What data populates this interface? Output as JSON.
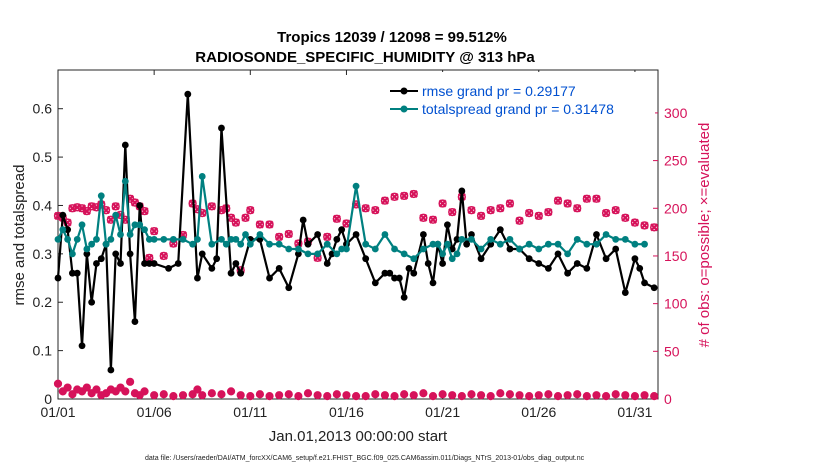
{
  "chart_data": {
    "type": "line",
    "title": "Tropics 12039 / 12098 = 99.512%",
    "subtitle": "RADIOSONDE_SPECIFIC_HUMIDITY @ 313 hPa",
    "xlabel": "Jan.01,2013 00:00:00 start",
    "ylabel_left": "rmse and totalspread",
    "ylabel_right": "# of obs: o=possible; ×=evaluated",
    "footer": "data file: /Users/raeder/DAI/ATM_forcXX/CAM6_setup/f.e21.FHIST_BGC.f09_025.CAM6assim.011/Diags_NTrS_2013-01/obs_diag_output.nc",
    "xlim": [
      1,
      32.2
    ],
    "ylim_left": [
      0,
      0.68
    ],
    "ylim_right": [
      0,
      345
    ],
    "x_ticks": [
      1,
      6,
      11,
      16,
      21,
      26,
      31
    ],
    "x_tick_labels": [
      "01/01",
      "01/06",
      "01/11",
      "01/16",
      "01/21",
      "01/26",
      "01/31"
    ],
    "y_ticks_left": [
      0,
      0.1,
      0.2,
      0.3,
      0.4,
      0.5,
      0.6
    ],
    "y_tick_labels_left": [
      "0",
      "0.1",
      "0.2",
      "0.3",
      "0.4",
      "0.5",
      "0.6"
    ],
    "y_ticks_right": [
      0,
      50,
      100,
      150,
      200,
      250,
      300
    ],
    "y_tick_labels_right": [
      "0",
      "50",
      "100",
      "150",
      "200",
      "250",
      "300"
    ],
    "legend_position": "top-right",
    "colors": {
      "rmse": "#000000",
      "spread": "#008080",
      "obs": "#d6125a",
      "legend_text": "#0050d0"
    },
    "series": [
      {
        "name": "rmse grand pr = 0.29177",
        "color": "#000000",
        "axis": "left",
        "x": [
          1.0,
          1.25,
          1.5,
          1.75,
          2.0,
          2.25,
          2.5,
          2.75,
          3.0,
          3.25,
          3.5,
          3.75,
          4.0,
          4.25,
          4.5,
          4.75,
          5.0,
          5.25,
          5.5,
          5.75,
          6.0,
          6.75,
          7.25,
          7.75,
          8.25,
          8.5,
          9.0,
          9.25,
          9.5,
          10.0,
          10.25,
          10.5,
          11.0,
          11.5,
          12.0,
          12.5,
          13.0,
          13.5,
          13.75,
          14.0,
          14.5,
          15.0,
          15.25,
          15.5,
          15.75,
          16.0,
          16.5,
          17.0,
          17.5,
          18.0,
          18.25,
          18.5,
          18.75,
          19.0,
          19.25,
          19.5,
          20.0,
          20.25,
          20.5,
          20.75,
          21.0,
          21.25,
          21.5,
          21.75,
          22.0,
          22.25,
          22.5,
          23.0,
          23.5,
          24.0,
          24.5,
          25.0,
          25.5,
          26.0,
          26.5,
          27.0,
          27.5,
          28.0,
          28.5,
          29.0,
          29.5,
          30.0,
          30.5,
          31.0,
          31.25,
          31.5,
          32.0
        ],
        "values": [
          0.25,
          0.38,
          0.35,
          0.26,
          0.26,
          0.11,
          0.3,
          0.2,
          0.28,
          0.29,
          0.32,
          0.06,
          0.3,
          0.28,
          0.525,
          0.3,
          0.16,
          0.4,
          0.28,
          0.28,
          0.28,
          0.27,
          0.28,
          0.63,
          0.25,
          0.3,
          0.27,
          0.29,
          0.56,
          0.26,
          0.28,
          0.26,
          0.33,
          0.33,
          0.25,
          0.27,
          0.23,
          0.3,
          0.37,
          0.32,
          0.34,
          0.28,
          0.3,
          0.33,
          0.35,
          0.32,
          0.34,
          0.29,
          0.24,
          0.26,
          0.26,
          0.25,
          0.25,
          0.21,
          0.27,
          0.26,
          0.34,
          0.28,
          0.24,
          0.32,
          0.28,
          0.36,
          0.31,
          0.33,
          0.43,
          0.32,
          0.34,
          0.29,
          0.32,
          0.35,
          0.31,
          0.31,
          0.29,
          0.28,
          0.27,
          0.3,
          0.26,
          0.28,
          0.27,
          0.34,
          0.29,
          0.31,
          0.22,
          0.29,
          0.27,
          0.24,
          0.23
        ]
      },
      {
        "name": "totalspread grand pr = 0.31478",
        "color": "#008080",
        "axis": "left",
        "x": [
          1.0,
          1.25,
          1.5,
          1.75,
          2.0,
          2.25,
          2.5,
          2.75,
          3.0,
          3.25,
          3.5,
          3.75,
          4.0,
          4.25,
          4.5,
          4.75,
          5.0,
          5.25,
          5.5,
          5.75,
          6.0,
          6.5,
          7.0,
          7.5,
          8.0,
          8.25,
          8.5,
          9.0,
          9.5,
          9.75,
          10.0,
          10.25,
          10.5,
          10.75,
          11.0,
          11.5,
          12.0,
          12.5,
          13.0,
          13.5,
          14.0,
          14.5,
          15.0,
          15.5,
          15.75,
          16.0,
          16.5,
          17.0,
          17.5,
          18.0,
          18.5,
          19.0,
          19.5,
          20.0,
          20.5,
          20.75,
          21.0,
          21.25,
          21.5,
          21.75,
          22.0,
          22.5,
          23.0,
          23.5,
          24.0,
          24.5,
          25.0,
          25.5,
          26.0,
          26.5,
          27.0,
          27.5,
          28.0,
          28.5,
          29.0,
          29.5,
          30.0,
          30.5,
          31.0,
          31.5
        ],
        "values": [
          0.33,
          0.35,
          0.33,
          0.3,
          0.33,
          0.36,
          0.31,
          0.32,
          0.33,
          0.42,
          0.32,
          0.33,
          0.38,
          0.34,
          0.45,
          0.34,
          0.36,
          0.36,
          0.35,
          0.33,
          0.33,
          0.33,
          0.33,
          0.33,
          0.32,
          0.33,
          0.46,
          0.32,
          0.33,
          0.32,
          0.33,
          0.33,
          0.32,
          0.34,
          0.32,
          0.34,
          0.32,
          0.32,
          0.31,
          0.31,
          0.3,
          0.3,
          0.32,
          0.3,
          0.31,
          0.31,
          0.44,
          0.32,
          0.31,
          0.34,
          0.31,
          0.3,
          0.29,
          0.31,
          0.32,
          0.32,
          0.3,
          0.32,
          0.29,
          0.3,
          0.33,
          0.33,
          0.31,
          0.33,
          0.32,
          0.33,
          0.31,
          0.32,
          0.31,
          0.32,
          0.32,
          0.3,
          0.33,
          0.32,
          0.32,
          0.34,
          0.33,
          0.33,
          0.32,
          0.32
        ]
      }
    ],
    "obs_possible": {
      "name": "possible",
      "axis": "right",
      "color": "#d6125a",
      "marker": "o",
      "x": [
        1.0,
        1.25,
        1.5,
        1.75,
        2.0,
        2.25,
        2.5,
        2.75,
        3.0,
        3.25,
        3.5,
        3.75,
        4.0,
        4.25,
        4.5,
        4.75,
        5.0,
        5.25,
        5.5,
        5.75,
        6.0,
        6.5,
        7.0,
        7.5,
        8.0,
        8.25,
        8.5,
        9.0,
        9.5,
        9.75,
        10.0,
        10.25,
        10.5,
        10.75,
        11.0,
        11.5,
        12.0,
        12.5,
        13.0,
        13.5,
        14.0,
        14.5,
        15.0,
        15.5,
        16.0,
        16.5,
        17.0,
        17.5,
        18.0,
        18.5,
        19.0,
        19.5,
        20.0,
        20.5,
        21.0,
        21.5,
        22.0,
        22.5,
        23.0,
        23.5,
        24.0,
        24.5,
        25.0,
        25.5,
        26.0,
        26.5,
        27.0,
        27.5,
        28.0,
        28.5,
        29.0,
        29.5,
        30.0,
        30.5,
        31.0,
        31.5,
        32.0
      ],
      "values": [
        192,
        190,
        185,
        200,
        201,
        200,
        197,
        202,
        201,
        204,
        198,
        188,
        202,
        193,
        188,
        210,
        206,
        202,
        197,
        148,
        176,
        150,
        163,
        172,
        205,
        199,
        195,
        202,
        198,
        200,
        190,
        185,
        135,
        190,
        198,
        183,
        183,
        170,
        173,
        163,
        165,
        148,
        170,
        189,
        184,
        204,
        200,
        198,
        208,
        212,
        213,
        215,
        190,
        188,
        205,
        196,
        212,
        198,
        192,
        198,
        200,
        205,
        187,
        195,
        192,
        196,
        208,
        205,
        200,
        210,
        210,
        195,
        198,
        190,
        185,
        182,
        180
      ]
    },
    "obs_evaluated": {
      "name": "evaluated",
      "axis": "right",
      "color": "#d6125a",
      "marker": "x",
      "x": [
        1.0,
        1.25,
        1.5,
        1.75,
        2.0,
        2.25,
        2.5,
        2.75,
        3.0,
        3.25,
        3.5,
        3.75,
        4.0,
        4.25,
        4.5,
        4.75,
        5.0,
        5.25,
        5.5,
        5.75,
        6.0,
        6.5,
        7.0,
        7.5,
        8.0,
        8.25,
        8.5,
        9.0,
        9.5,
        9.75,
        10.0,
        10.25,
        10.5,
        10.75,
        11.0,
        11.5,
        12.0,
        12.5,
        13.0,
        13.5,
        14.0,
        14.5,
        15.0,
        15.5,
        16.0,
        16.5,
        17.0,
        17.5,
        18.0,
        18.5,
        19.0,
        19.5,
        20.0,
        20.5,
        21.0,
        21.5,
        22.0,
        22.5,
        23.0,
        23.5,
        24.0,
        24.5,
        25.0,
        25.5,
        26.0,
        26.5,
        27.0,
        27.5,
        28.0,
        28.5,
        29.0,
        29.5,
        30.0,
        30.5,
        31.0,
        31.5,
        32.0
      ],
      "values": [
        192,
        190,
        185,
        200,
        201,
        200,
        197,
        202,
        201,
        204,
        198,
        188,
        202,
        193,
        188,
        210,
        206,
        202,
        197,
        148,
        176,
        150,
        163,
        172,
        205,
        199,
        195,
        202,
        198,
        200,
        190,
        185,
        135,
        190,
        198,
        183,
        183,
        170,
        173,
        163,
        165,
        148,
        170,
        189,
        184,
        204,
        200,
        198,
        208,
        212,
        213,
        215,
        190,
        188,
        205,
        196,
        212,
        198,
        192,
        198,
        200,
        205,
        187,
        195,
        192,
        196,
        208,
        205,
        200,
        210,
        210,
        195,
        198,
        190,
        185,
        182,
        180
      ]
    },
    "obs_low": {
      "name": "low counts",
      "axis": "right",
      "color": "#d6125a",
      "x": [
        1.0,
        1.25,
        1.5,
        1.75,
        2.0,
        2.25,
        2.5,
        2.75,
        3.0,
        3.25,
        3.5,
        3.75,
        4.0,
        4.25,
        4.5,
        4.75,
        5.0,
        5.25,
        5.5,
        6.0,
        6.5,
        7.0,
        7.5,
        8.0,
        8.25,
        8.5,
        9.0,
        9.5,
        10.0,
        10.5,
        11.0,
        11.5,
        12.0,
        12.5,
        13.0,
        13.5,
        14.0,
        14.5,
        15.0,
        15.5,
        16.0,
        16.5,
        17.0,
        17.5,
        18.0,
        18.5,
        19.0,
        19.5,
        20.0,
        20.5,
        21.0,
        21.5,
        22.0,
        22.5,
        23.0,
        23.5,
        24.0,
        24.5,
        25.0,
        25.5,
        26.0,
        26.5,
        27.0,
        27.5,
        28.0,
        28.5,
        29.0,
        29.5,
        30.0,
        30.5,
        31.0,
        31.5,
        32.0
      ],
      "values": [
        16,
        8,
        12,
        5,
        10,
        8,
        12,
        6,
        10,
        4,
        6,
        10,
        8,
        12,
        8,
        18,
        6,
        4,
        8,
        4,
        5,
        3,
        4,
        5,
        10,
        4,
        6,
        5,
        8,
        4,
        3,
        5,
        3,
        4,
        5,
        3,
        6,
        4,
        3,
        5,
        4,
        3,
        3,
        5,
        4,
        3,
        5,
        4,
        6,
        3,
        5,
        4,
        3,
        5,
        4,
        3,
        6,
        5,
        4,
        3,
        4,
        5,
        3,
        4,
        5,
        3,
        4,
        3,
        5,
        4,
        3,
        4,
        3
      ]
    }
  }
}
